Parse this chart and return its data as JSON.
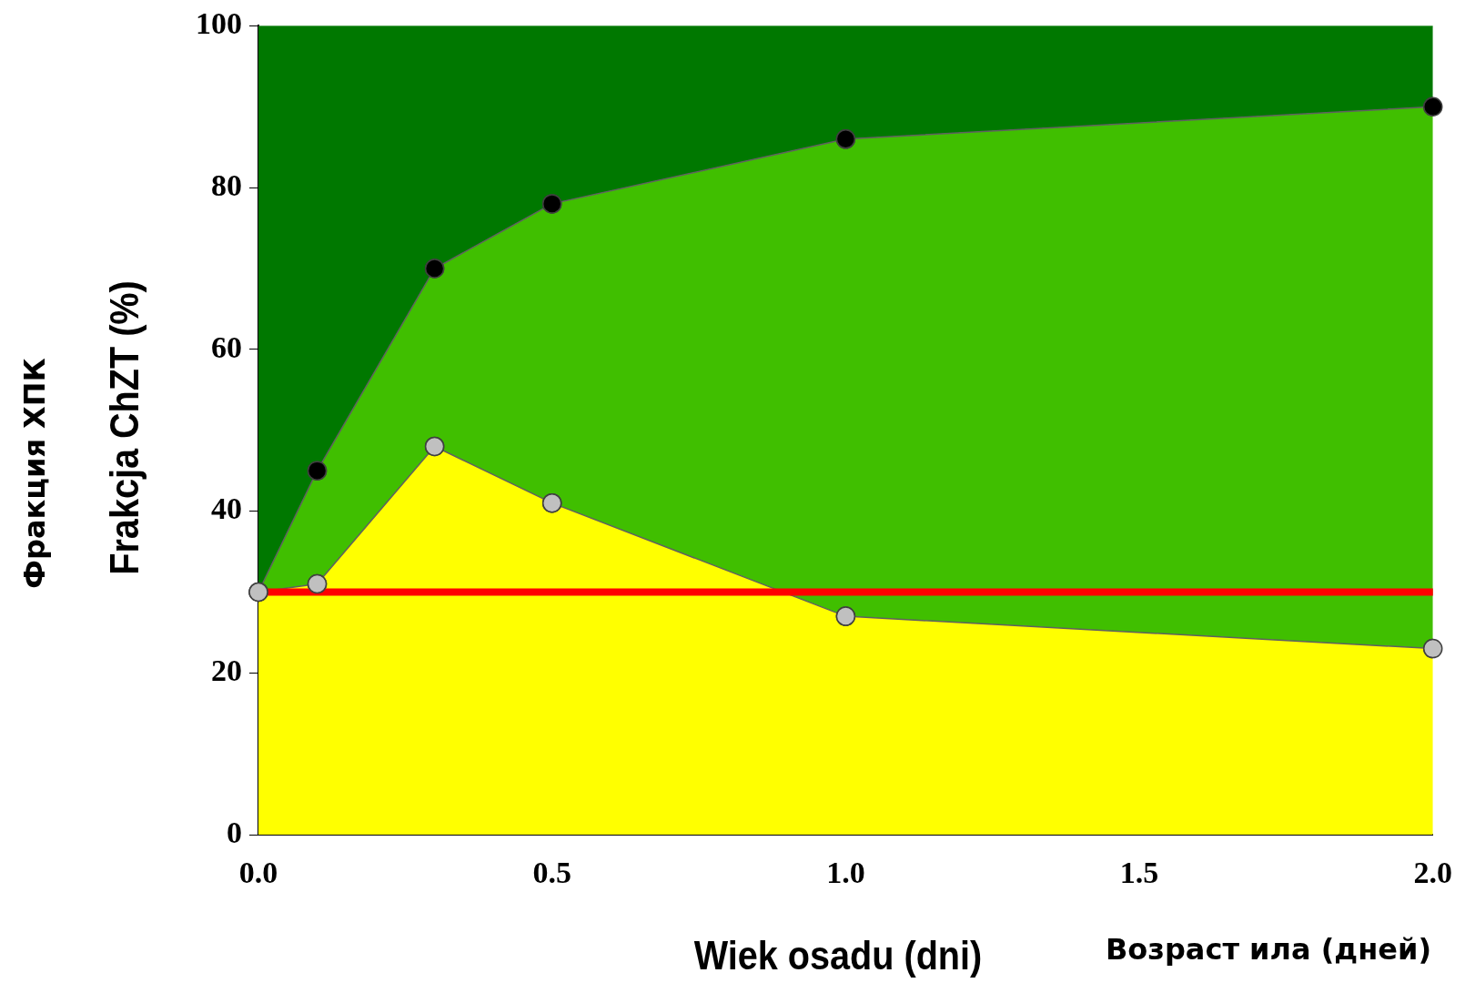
{
  "chart_data": {
    "type": "area",
    "ylabel": "Frakcja ChZT (%)",
    "xlabel": "Wiek osadu (dni)",
    "annotations": [
      "Фракция ХПК",
      "Возраст ила (дней)"
    ],
    "x": [
      0,
      0.1,
      0.3,
      0.5,
      1.0,
      2.0
    ],
    "series": [
      {
        "color": "#ffff00",
        "marker": "circle",
        "values": [
          30,
          31,
          48,
          41,
          27,
          23
        ]
      },
      {
        "color": "#40bf00",
        "marker": "circle",
        "values": [
          30,
          45,
          70,
          78,
          86,
          90
        ]
      },
      {
        "color": "#007800",
        "marker": "none",
        "values": [
          100,
          100,
          100,
          100,
          100,
          100
        ]
      }
    ],
    "ref_lines": [
      {
        "axis": "y",
        "value": 30,
        "color": "#ff0000",
        "line_style": "solid"
      }
    ],
    "xlim": [
      0,
      2
    ],
    "xticks": [
      {
        "value": 0,
        "label": "0.0"
      },
      {
        "value": 0.5,
        "label": "0.5"
      },
      {
        "value": 1,
        "label": "1.0"
      },
      {
        "value": 1.5,
        "label": "1.5"
      },
      {
        "value": 2,
        "label": "2.0"
      }
    ],
    "ylim": [
      0,
      100
    ],
    "yticks": [
      0,
      20,
      40,
      60,
      80,
      100
    ],
    "grid": false,
    "legend": false
  }
}
